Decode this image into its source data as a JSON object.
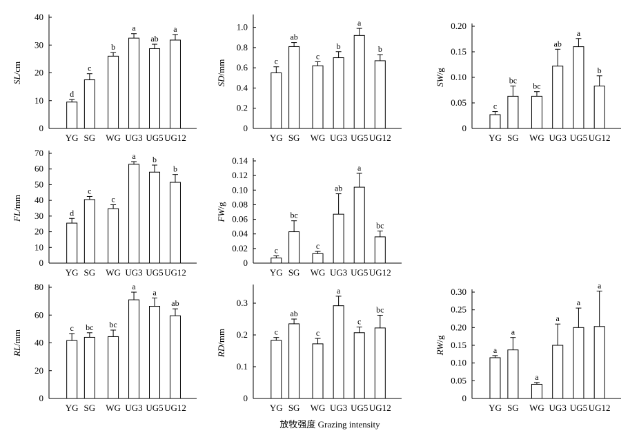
{
  "chart_data": [
    {
      "type": "bar",
      "id": "SL",
      "ylabel_var": "SL",
      "ylabel_unit": "/cm",
      "categories": [
        "YG",
        "SG",
        "WG",
        "UG3",
        "UG5",
        "UG12"
      ],
      "values": [
        9.5,
        17.5,
        26.0,
        32.5,
        28.7,
        31.8
      ],
      "errors": [
        0.9,
        2.2,
        1.3,
        1.6,
        1.6,
        2.0
      ],
      "letters": [
        "d",
        "c",
        "b",
        "a",
        "ab",
        "a"
      ],
      "ylim": [
        0,
        40
      ],
      "yticks": [
        "0",
        "10",
        "20",
        "30",
        "40"
      ],
      "ytick_values": [
        0,
        10,
        20,
        30,
        40
      ]
    },
    {
      "type": "bar",
      "id": "SD",
      "ylabel_var": "SD",
      "ylabel_unit": "/mm",
      "categories": [
        "YG",
        "SG",
        "WG",
        "UG3",
        "UG5",
        "UG12"
      ],
      "values": [
        0.55,
        0.81,
        0.62,
        0.7,
        0.92,
        0.67
      ],
      "errors": [
        0.06,
        0.04,
        0.04,
        0.06,
        0.07,
        0.06
      ],
      "letters": [
        "c",
        "ab",
        "c",
        "b",
        "a",
        "b"
      ],
      "ylim": [
        0,
        1.1
      ],
      "yticks": [
        "0",
        "0.2",
        "0.4",
        "0.6",
        "0.8",
        "1.0"
      ],
      "ytick_values": [
        0,
        0.2,
        0.4,
        0.6,
        0.8,
        1.0
      ]
    },
    {
      "type": "bar",
      "id": "SW",
      "ylabel_var": "SW",
      "ylabel_unit": "/g",
      "categories": [
        "YG",
        "SG",
        "WG",
        "UG3",
        "UG5",
        "UG12"
      ],
      "values": [
        0.027,
        0.063,
        0.063,
        0.122,
        0.16,
        0.083
      ],
      "errors": [
        0.006,
        0.02,
        0.009,
        0.033,
        0.016,
        0.02
      ],
      "letters": [
        "c",
        "bc",
        "bc",
        "ab",
        "a",
        "b"
      ],
      "ylim": [
        0,
        0.2
      ],
      "yticks": [
        "0",
        "0.05",
        "0.10",
        "0.15",
        "0.20"
      ],
      "ytick_values": [
        0,
        0.05,
        0.1,
        0.15,
        0.2
      ]
    },
    {
      "type": "bar",
      "id": "FL",
      "ylabel_var": "FL",
      "ylabel_unit": "/mm",
      "categories": [
        "YG",
        "SG",
        "WG",
        "UG3",
        "UG5",
        "UG12"
      ],
      "values": [
        25.5,
        40.5,
        34.7,
        63.0,
        58.0,
        51.5
      ],
      "errors": [
        3.0,
        2.0,
        2.5,
        1.7,
        4.5,
        5.0
      ],
      "letters": [
        "d",
        "c",
        "c",
        "a",
        "b",
        "b"
      ],
      "ylim": [
        0,
        70
      ],
      "yticks": [
        "0",
        "10",
        "20",
        "30",
        "40",
        "50",
        "60",
        "70"
      ],
      "ytick_values": [
        0,
        10,
        20,
        30,
        40,
        50,
        60,
        70
      ]
    },
    {
      "type": "bar",
      "id": "FW",
      "ylabel_var": "FW",
      "ylabel_unit": "/g",
      "categories": [
        "YG",
        "SG",
        "WG",
        "UG3",
        "UG5",
        "UG12"
      ],
      "values": [
        0.007,
        0.043,
        0.013,
        0.067,
        0.104,
        0.036
      ],
      "errors": [
        0.003,
        0.015,
        0.003,
        0.028,
        0.019,
        0.008
      ],
      "letters": [
        "c",
        "bc",
        "c",
        "ab",
        "a",
        "bc"
      ],
      "ylim": [
        0,
        0.14
      ],
      "yticks": [
        "0",
        "0.02",
        "0.04",
        "0.06",
        "0.08",
        "0.10",
        "0.12",
        "0.14"
      ],
      "ytick_values": [
        0,
        0.02,
        0.04,
        0.06,
        0.08,
        0.1,
        0.12,
        0.14
      ]
    },
    {
      "type": "bar",
      "id": "RL",
      "ylabel_var": "RL",
      "ylabel_unit": "/mm",
      "categories": [
        "YG",
        "SG",
        "WG",
        "UG3",
        "UG5",
        "UG12"
      ],
      "values": [
        41.7,
        44.0,
        44.5,
        71.0,
        66.3,
        59.5
      ],
      "errors": [
        5.0,
        3.3,
        4.7,
        5.5,
        6.0,
        5.0
      ],
      "letters": [
        "c",
        "bc",
        "bc",
        "a",
        "a",
        "ab"
      ],
      "ylim": [
        0,
        80
      ],
      "yticks": [
        "0",
        "20",
        "40",
        "60",
        "80"
      ],
      "ytick_values": [
        0,
        20,
        40,
        60,
        80
      ]
    },
    {
      "type": "bar",
      "id": "RD",
      "ylabel_var": "RD",
      "ylabel_unit": "/mm",
      "categories": [
        "YG",
        "SG",
        "WG",
        "UG3",
        "UG5",
        "UG12"
      ],
      "values": [
        0.183,
        0.235,
        0.172,
        0.292,
        0.207,
        0.222
      ],
      "errors": [
        0.009,
        0.015,
        0.017,
        0.03,
        0.018,
        0.04
      ],
      "letters": [
        "c",
        "ab",
        "c",
        "a",
        "c",
        "bc"
      ],
      "ylim": [
        0,
        0.35
      ],
      "yticks": [
        "0",
        "0.1",
        "0.2",
        "0.3"
      ],
      "ytick_values": [
        0,
        0.1,
        0.2,
        0.3
      ]
    },
    {
      "type": "bar",
      "id": "RW",
      "ylabel_var": "RW",
      "ylabel_unit": "/g",
      "categories": [
        "YG",
        "SG",
        "WG",
        "UG3",
        "UG5",
        "UG12"
      ],
      "values": [
        0.115,
        0.137,
        0.04,
        0.15,
        0.2,
        0.203
      ],
      "errors": [
        0.006,
        0.035,
        0.005,
        0.06,
        0.055,
        0.1
      ],
      "letters": [
        "a",
        "a",
        "a",
        "a",
        "a",
        "a"
      ],
      "ylim": [
        0,
        0.3
      ],
      "yticks": [
        "0",
        "0.05",
        "0.10",
        "0.15",
        "0.20",
        "0.25",
        "0.30"
      ],
      "ytick_values": [
        0,
        0.05,
        0.1,
        0.15,
        0.2,
        0.25,
        0.3
      ]
    }
  ],
  "xlabel": "放牧强度 Grazing intensity"
}
